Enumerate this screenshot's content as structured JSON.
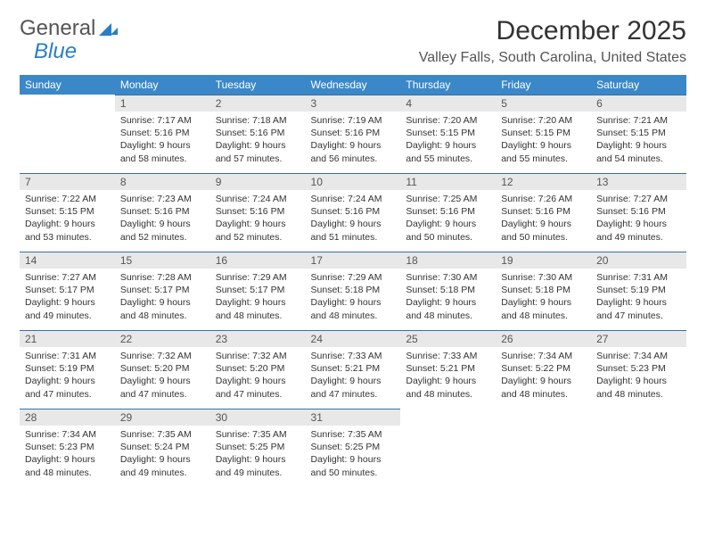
{
  "brand": {
    "part1": "General",
    "part2": "Blue"
  },
  "title": "December 2025",
  "location": "Valley Falls, South Carolina, United States",
  "colors": {
    "header_bg": "#3b88c8",
    "header_text": "#ffffff",
    "daynum_bg": "#e8e8e8",
    "daynum_border": "#3b6fa0",
    "body_text": "#333333",
    "brand_gray": "#555555",
    "brand_blue": "#2a7ec5"
  },
  "day_labels": [
    "Sunday",
    "Monday",
    "Tuesday",
    "Wednesday",
    "Thursday",
    "Friday",
    "Saturday"
  ],
  "weeks": [
    [
      null,
      {
        "n": "1",
        "sr": "7:17 AM",
        "ss": "5:16 PM",
        "dl": "9 hours and 58 minutes."
      },
      {
        "n": "2",
        "sr": "7:18 AM",
        "ss": "5:16 PM",
        "dl": "9 hours and 57 minutes."
      },
      {
        "n": "3",
        "sr": "7:19 AM",
        "ss": "5:16 PM",
        "dl": "9 hours and 56 minutes."
      },
      {
        "n": "4",
        "sr": "7:20 AM",
        "ss": "5:15 PM",
        "dl": "9 hours and 55 minutes."
      },
      {
        "n": "5",
        "sr": "7:20 AM",
        "ss": "5:15 PM",
        "dl": "9 hours and 55 minutes."
      },
      {
        "n": "6",
        "sr": "7:21 AM",
        "ss": "5:15 PM",
        "dl": "9 hours and 54 minutes."
      }
    ],
    [
      {
        "n": "7",
        "sr": "7:22 AM",
        "ss": "5:15 PM",
        "dl": "9 hours and 53 minutes."
      },
      {
        "n": "8",
        "sr": "7:23 AM",
        "ss": "5:16 PM",
        "dl": "9 hours and 52 minutes."
      },
      {
        "n": "9",
        "sr": "7:24 AM",
        "ss": "5:16 PM",
        "dl": "9 hours and 52 minutes."
      },
      {
        "n": "10",
        "sr": "7:24 AM",
        "ss": "5:16 PM",
        "dl": "9 hours and 51 minutes."
      },
      {
        "n": "11",
        "sr": "7:25 AM",
        "ss": "5:16 PM",
        "dl": "9 hours and 50 minutes."
      },
      {
        "n": "12",
        "sr": "7:26 AM",
        "ss": "5:16 PM",
        "dl": "9 hours and 50 minutes."
      },
      {
        "n": "13",
        "sr": "7:27 AM",
        "ss": "5:16 PM",
        "dl": "9 hours and 49 minutes."
      }
    ],
    [
      {
        "n": "14",
        "sr": "7:27 AM",
        "ss": "5:17 PM",
        "dl": "9 hours and 49 minutes."
      },
      {
        "n": "15",
        "sr": "7:28 AM",
        "ss": "5:17 PM",
        "dl": "9 hours and 48 minutes."
      },
      {
        "n": "16",
        "sr": "7:29 AM",
        "ss": "5:17 PM",
        "dl": "9 hours and 48 minutes."
      },
      {
        "n": "17",
        "sr": "7:29 AM",
        "ss": "5:18 PM",
        "dl": "9 hours and 48 minutes."
      },
      {
        "n": "18",
        "sr": "7:30 AM",
        "ss": "5:18 PM",
        "dl": "9 hours and 48 minutes."
      },
      {
        "n": "19",
        "sr": "7:30 AM",
        "ss": "5:18 PM",
        "dl": "9 hours and 48 minutes."
      },
      {
        "n": "20",
        "sr": "7:31 AM",
        "ss": "5:19 PM",
        "dl": "9 hours and 47 minutes."
      }
    ],
    [
      {
        "n": "21",
        "sr": "7:31 AM",
        "ss": "5:19 PM",
        "dl": "9 hours and 47 minutes."
      },
      {
        "n": "22",
        "sr": "7:32 AM",
        "ss": "5:20 PM",
        "dl": "9 hours and 47 minutes."
      },
      {
        "n": "23",
        "sr": "7:32 AM",
        "ss": "5:20 PM",
        "dl": "9 hours and 47 minutes."
      },
      {
        "n": "24",
        "sr": "7:33 AM",
        "ss": "5:21 PM",
        "dl": "9 hours and 47 minutes."
      },
      {
        "n": "25",
        "sr": "7:33 AM",
        "ss": "5:21 PM",
        "dl": "9 hours and 48 minutes."
      },
      {
        "n": "26",
        "sr": "7:34 AM",
        "ss": "5:22 PM",
        "dl": "9 hours and 48 minutes."
      },
      {
        "n": "27",
        "sr": "7:34 AM",
        "ss": "5:23 PM",
        "dl": "9 hours and 48 minutes."
      }
    ],
    [
      {
        "n": "28",
        "sr": "7:34 AM",
        "ss": "5:23 PM",
        "dl": "9 hours and 48 minutes."
      },
      {
        "n": "29",
        "sr": "7:35 AM",
        "ss": "5:24 PM",
        "dl": "9 hours and 49 minutes."
      },
      {
        "n": "30",
        "sr": "7:35 AM",
        "ss": "5:25 PM",
        "dl": "9 hours and 49 minutes."
      },
      {
        "n": "31",
        "sr": "7:35 AM",
        "ss": "5:25 PM",
        "dl": "9 hours and 50 minutes."
      },
      null,
      null,
      null
    ]
  ],
  "labels": {
    "sunrise": "Sunrise:",
    "sunset": "Sunset:",
    "daylight": "Daylight:"
  }
}
